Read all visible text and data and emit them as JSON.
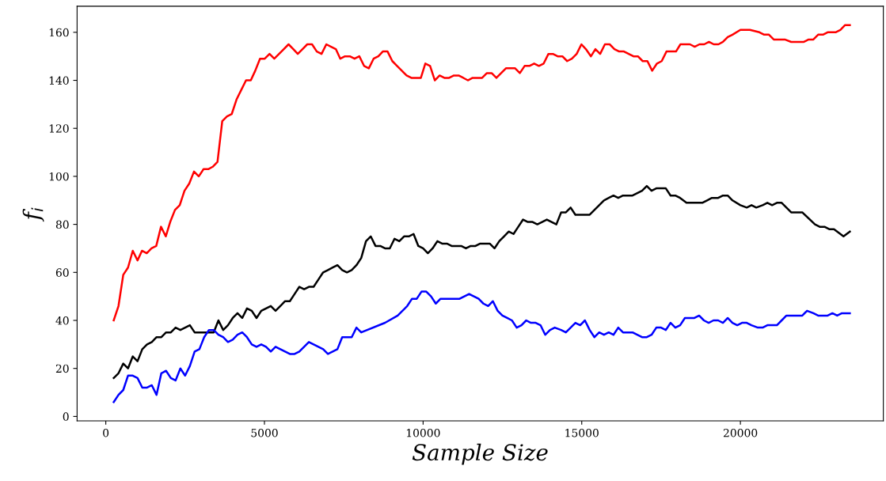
{
  "chart_data": {
    "type": "line",
    "xlabel": "Sample Size",
    "ylabel": "f$_{i}$",
    "xlim": [
      -905,
      24505
    ],
    "ylim": [
      -1.85,
      170.85
    ],
    "xticks": [
      0,
      5000,
      10000,
      15000,
      20000
    ],
    "yticks": [
      0,
      20,
      40,
      60,
      80,
      100,
      120,
      140,
      160
    ],
    "grid": false,
    "line_style": "solid",
    "marker": "none",
    "series": [
      {
        "color": "#ff0000",
        "x": [
          250,
          400,
          550,
          700,
          850,
          1000,
          1140,
          1290,
          1440,
          1590,
          1740,
          1890,
          2030,
          2180,
          2330,
          2480,
          2630,
          2780,
          2930,
          3080,
          3230,
          3370,
          3520,
          3670,
          3820,
          3970,
          4120,
          4270,
          4420,
          4570,
          4710,
          4860,
          5010,
          5160,
          5310,
          5460,
          5610,
          5760,
          5910,
          6050,
          6200,
          6350,
          6500,
          6650,
          6800,
          6950,
          7100,
          7250,
          7390,
          7540,
          7690,
          7840,
          7990,
          8140,
          8290,
          8440,
          8590,
          8730,
          8880,
          9030,
          9180,
          9330,
          9480,
          9630,
          9780,
          9930,
          10070,
          10220,
          10370,
          10520,
          10670,
          10820,
          10970,
          11120,
          11270,
          11410,
          11560,
          11710,
          11860,
          12010,
          12160,
          12310,
          12460,
          12610,
          12750,
          12900,
          13050,
          13200,
          13350,
          13500,
          13650,
          13800,
          13950,
          14090,
          14240,
          14390,
          14540,
          14690,
          14840,
          14990,
          15130,
          15290,
          15430,
          15580,
          15730,
          15880,
          16030,
          16180,
          16330,
          16480,
          16630,
          16770,
          16920,
          17070,
          17220,
          17370,
          17520,
          17670,
          17820,
          17970,
          18110,
          18260,
          18410,
          18560,
          18710,
          18860,
          19010,
          19160,
          19310,
          19450,
          19600,
          19750,
          20000,
          20300,
          20600,
          20750,
          20900,
          21050,
          21400,
          21600,
          22000,
          22150,
          22300,
          22450,
          22600,
          22750,
          23000,
          23150,
          23300,
          23450
        ],
        "values": [
          40,
          46,
          59,
          62,
          69,
          65,
          69,
          68,
          70,
          71,
          79,
          75,
          81,
          86,
          88,
          94,
          97,
          102,
          100,
          103,
          103,
          104,
          106,
          123,
          125,
          126,
          132,
          136,
          140,
          140,
          144,
          149,
          149,
          151,
          149,
          151,
          153,
          155,
          153,
          151,
          153,
          155,
          155,
          152,
          151,
          155,
          154,
          153,
          149,
          150,
          150,
          149,
          150,
          146,
          145,
          149,
          150,
          152,
          152,
          148,
          146,
          144,
          142,
          141,
          141,
          141,
          147,
          146,
          140,
          142,
          141,
          141,
          142,
          142,
          141,
          140,
          141,
          141,
          141,
          143,
          143,
          141,
          143,
          145,
          145,
          145,
          143,
          146,
          146,
          147,
          146,
          147,
          151,
          151,
          150,
          150,
          148,
          149,
          151,
          155,
          153,
          150,
          153,
          151,
          155,
          155,
          153,
          152,
          152,
          151,
          150,
          150,
          148,
          148,
          144,
          147,
          148,
          152,
          152,
          152,
          155,
          155,
          155,
          154,
          155,
          155,
          156,
          155,
          155,
          156,
          158,
          159,
          161,
          161,
          160,
          159,
          159,
          157,
          157,
          156,
          156,
          157,
          157,
          159,
          159,
          160,
          160,
          161,
          163,
          163
        ]
      },
      {
        "color": "#000000",
        "x": [
          250,
          400,
          550,
          700,
          850,
          1000,
          1150,
          1300,
          1450,
          1600,
          1750,
          1900,
          2050,
          2200,
          2350,
          2500,
          2650,
          2800,
          3100,
          3400,
          3550,
          3700,
          3850,
          4000,
          4150,
          4300,
          4450,
          4600,
          4750,
          4900,
          5050,
          5200,
          5350,
          5500,
          5650,
          5800,
          5950,
          6100,
          6250,
          6400,
          6550,
          6700,
          6850,
          7000,
          7150,
          7300,
          7450,
          7600,
          7750,
          7900,
          8050,
          8200,
          8350,
          8500,
          8650,
          8800,
          8950,
          9100,
          9250,
          9400,
          9550,
          9700,
          9850,
          10000,
          10150,
          10300,
          10450,
          10600,
          10750,
          10900,
          11200,
          11350,
          11500,
          11650,
          11800,
          12100,
          12250,
          12400,
          12550,
          12700,
          12850,
          13000,
          13150,
          13300,
          13450,
          13600,
          13750,
          13900,
          14050,
          14200,
          14350,
          14500,
          14650,
          14800,
          15100,
          15250,
          15400,
          15550,
          15700,
          15850,
          16000,
          16150,
          16300,
          16600,
          16750,
          16900,
          17050,
          17200,
          17350,
          17650,
          17800,
          17950,
          18100,
          18300,
          18800,
          18950,
          19100,
          19300,
          19450,
          19600,
          19750,
          20000,
          20200,
          20350,
          20500,
          20700,
          20850,
          21000,
          21150,
          21300,
          21600,
          21950,
          22350,
          22500,
          22650,
          22800,
          22950,
          23250,
          23450
        ],
        "values": [
          16,
          18,
          22,
          20,
          25,
          23,
          28,
          30,
          31,
          33,
          33,
          35,
          35,
          37,
          36,
          37,
          38,
          35,
          35,
          35,
          40,
          36,
          38,
          41,
          43,
          41,
          45,
          44,
          41,
          44,
          45,
          46,
          44,
          46,
          48,
          48,
          51,
          54,
          53,
          54,
          54,
          57,
          60,
          61,
          62,
          63,
          61,
          60,
          61,
          63,
          66,
          73,
          75,
          71,
          71,
          70,
          70,
          74,
          73,
          75,
          75,
          76,
          71,
          70,
          68,
          70,
          73,
          72,
          72,
          71,
          71,
          70,
          71,
          71,
          72,
          72,
          70,
          73,
          75,
          77,
          76,
          79,
          82,
          81,
          81,
          80,
          81,
          82,
          81,
          80,
          85,
          85,
          87,
          84,
          84,
          84,
          86,
          88,
          90,
          91,
          92,
          91,
          92,
          92,
          93,
          94,
          96,
          94,
          95,
          95,
          92,
          92,
          91,
          89,
          89,
          90,
          91,
          91,
          92,
          92,
          90,
          88,
          87,
          88,
          87,
          88,
          89,
          88,
          89,
          89,
          85,
          85,
          80,
          79,
          79,
          78,
          78,
          75,
          77
        ]
      },
      {
        "color": "#0000ff",
        "x": [
          250,
          400,
          550,
          700,
          850,
          1000,
          1150,
          1300,
          1450,
          1600,
          1750,
          1900,
          2050,
          2200,
          2350,
          2500,
          2650,
          2800,
          2950,
          3100,
          3250,
          3400,
          3550,
          3700,
          3850,
          4000,
          4150,
          4300,
          4450,
          4600,
          4750,
          4900,
          5050,
          5200,
          5350,
          5500,
          5650,
          5800,
          5950,
          6100,
          6250,
          6400,
          6550,
          6700,
          6850,
          7000,
          7150,
          7300,
          7450,
          7600,
          7750,
          7900,
          8050,
          8800,
          9200,
          9350,
          9500,
          9650,
          9800,
          9950,
          10100,
          10250,
          10400,
          10550,
          11150,
          11300,
          11450,
          11600,
          11750,
          11900,
          12050,
          12200,
          12350,
          12500,
          12650,
          12800,
          12950,
          13100,
          13250,
          13400,
          13550,
          13700,
          13850,
          14000,
          14150,
          14350,
          14500,
          14650,
          14800,
          14950,
          15100,
          15250,
          15400,
          15550,
          15700,
          15850,
          16000,
          16150,
          16300,
          16600,
          16750,
          16900,
          17050,
          17200,
          17350,
          17500,
          17650,
          17800,
          17950,
          18100,
          18250,
          18550,
          18700,
          18850,
          19000,
          19150,
          19300,
          19450,
          19600,
          19750,
          19900,
          20050,
          20200,
          20350,
          20550,
          20700,
          20850,
          21150,
          21300,
          21450,
          21950,
          22100,
          22300,
          22450,
          22750,
          22900,
          23050,
          23200,
          23450
        ],
        "values": [
          6,
          9,
          11,
          17,
          17,
          16,
          12,
          12,
          13,
          9,
          18,
          19,
          16,
          15,
          20,
          17,
          21,
          27,
          28,
          33,
          36,
          36,
          34,
          33,
          31,
          32,
          34,
          35,
          33,
          30,
          29,
          30,
          29,
          27,
          29,
          28,
          27,
          26,
          26,
          27,
          29,
          31,
          30,
          29,
          28,
          26,
          27,
          28,
          33,
          33,
          33,
          37,
          35,
          39,
          42,
          44,
          46,
          49,
          49,
          52,
          52,
          50,
          47,
          49,
          49,
          50,
          51,
          50,
          49,
          47,
          46,
          48,
          44,
          42,
          41,
          40,
          37,
          38,
          40,
          39,
          39,
          38,
          34,
          36,
          37,
          36,
          35,
          37,
          39,
          38,
          40,
          36,
          33,
          35,
          34,
          35,
          34,
          37,
          35,
          35,
          34,
          33,
          33,
          34,
          37,
          37,
          36,
          39,
          37,
          38,
          41,
          41,
          42,
          40,
          39,
          40,
          40,
          39,
          41,
          39,
          38,
          39,
          39,
          38,
          37,
          37,
          38,
          38,
          40,
          42,
          42,
          44,
          43,
          42,
          42,
          43,
          42,
          43,
          43
        ]
      }
    ]
  }
}
